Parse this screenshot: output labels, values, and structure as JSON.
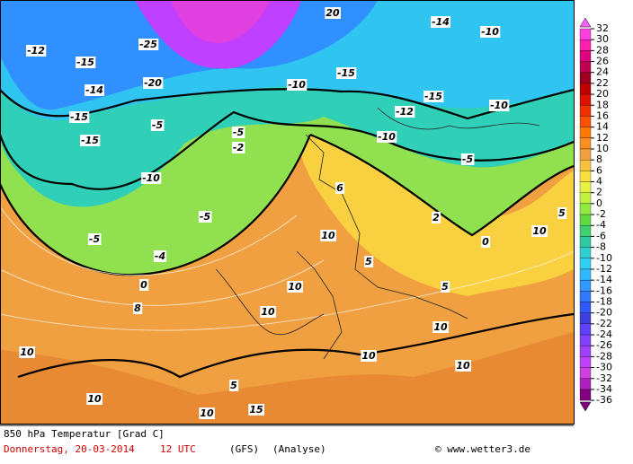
{
  "map": {
    "contour_labels": [
      "-25",
      "-20",
      "-15",
      "-15",
      "-15",
      "-10",
      "-10",
      "-10",
      "-10",
      "-10",
      "-15",
      "-15",
      "-5",
      "-5",
      "-5",
      "-5",
      "-5",
      "0",
      "0",
      "5",
      "5",
      "5",
      "5",
      "10",
      "10",
      "10",
      "10",
      "10",
      "10",
      "10",
      "10",
      "10",
      "10",
      "15",
      "20",
      "-12",
      "-14",
      "-12",
      "-14",
      "-2",
      "2",
      "-4",
      "6",
      "8"
    ],
    "legend": {
      "ticks": [
        32,
        30,
        28,
        26,
        24,
        22,
        20,
        18,
        16,
        14,
        12,
        10,
        8,
        6,
        4,
        2,
        0,
        -2,
        -4,
        -6,
        -8,
        -10,
        -12,
        -14,
        -16,
        -18,
        -20,
        -22,
        -24,
        -26,
        -28,
        -30,
        -32,
        -34,
        -36
      ],
      "colors": [
        "#ff40e0",
        "#ff20b0",
        "#e00080",
        "#c00050",
        "#a00020",
        "#c00000",
        "#e01000",
        "#f03000",
        "#ff5000",
        "#ff7800",
        "#f89020",
        "#f0a040",
        "#f8c040",
        "#f8e040",
        "#e8f040",
        "#c0f040",
        "#90e840",
        "#60d840",
        "#40d070",
        "#30c8a0",
        "#30d0d0",
        "#30d0f0",
        "#30b8ff",
        "#3098ff",
        "#3078ff",
        "#3058ff",
        "#4040e0",
        "#6040ff",
        "#8040ff",
        "#a040ff",
        "#c040ff",
        "#d040e0",
        "#b020c0",
        "#800080"
      ]
    },
    "footer": {
      "title": "850 hPa Temperatur [Grad C]",
      "date": "Donnerstag, 20-03-2014",
      "time": "12 UTC",
      "model": "(GFS)",
      "run": "(Analyse)",
      "credit": "© www.wetter3.de"
    }
  }
}
